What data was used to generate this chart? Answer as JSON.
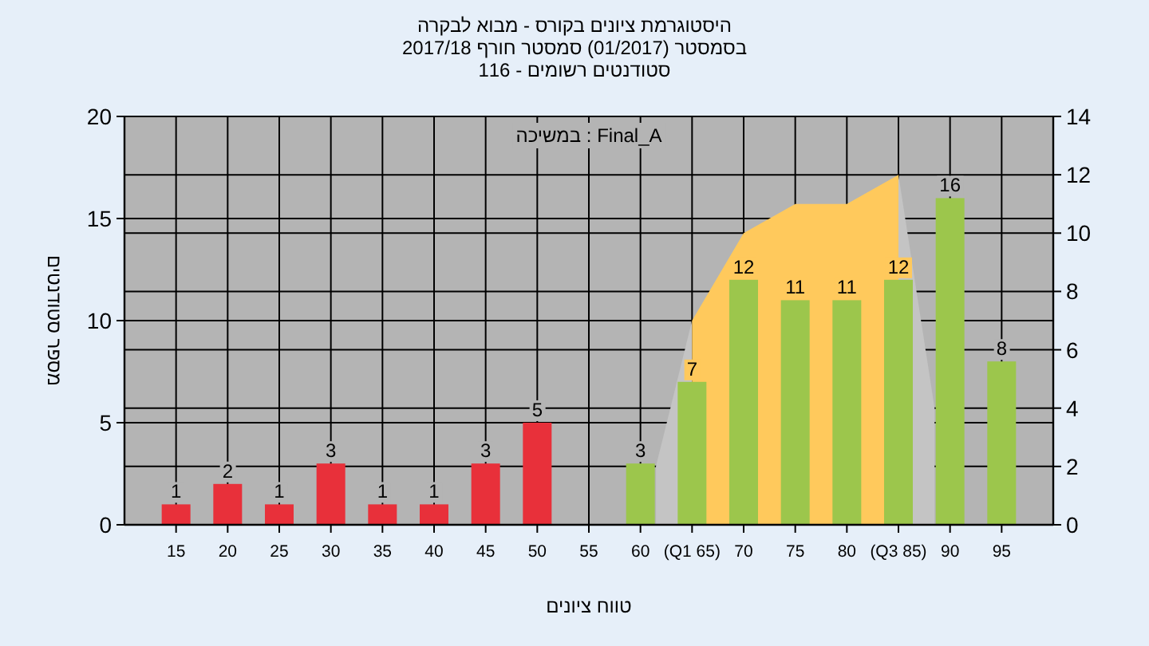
{
  "chart_data": {
    "type": "bar",
    "title": "היסטוגרמת ציונים בקורס - מבוא לבקרה",
    "subtitle": "בסמסטר  (01/2017)  סמסטר חורף 2017/18",
    "annotations": [
      "סטודנטים רשומים - 116",
      "במשיכה : Final_A"
    ],
    "xlabel": "טווח ציונים",
    "ylabel": "מספר סטודנטים",
    "xlim": [
      10,
      100
    ],
    "xticks": [
      15,
      20,
      25,
      30,
      35,
      40,
      45,
      50,
      55,
      60,
      {
        "value": 65,
        "label": "(Q1 65)"
      },
      70,
      75,
      80,
      {
        "value": 85,
        "label": "(Q3 85)"
      },
      90,
      95
    ],
    "ylim": [
      0,
      20
    ],
    "yticks": [
      0,
      5,
      10,
      15,
      20
    ],
    "y2lim": [
      0,
      14
    ],
    "y2ticks": [
      0,
      2,
      4,
      6,
      8,
      10,
      12,
      14
    ],
    "grid": true,
    "series": [
      {
        "type": "area",
        "axis": "y2",
        "color": "#c4c4c4",
        "x": [
          61.5,
          65
        ],
        "values": [
          2,
          7
        ]
      },
      {
        "type": "area",
        "axis": "y2",
        "color": "#c4c4c4",
        "x": [
          85,
          88.5
        ],
        "values": [
          12,
          4
        ]
      },
      {
        "type": "area",
        "axis": "y2",
        "color": "#ffc95c",
        "x": [
          65,
          70,
          75,
          80,
          85
        ],
        "values": [
          7,
          10,
          11,
          11,
          12
        ]
      },
      {
        "x": [
          15,
          20,
          25,
          30,
          35,
          40,
          45,
          50,
          55,
          60,
          65,
          70,
          75,
          80,
          85,
          90,
          95
        ],
        "values": [
          1,
          2,
          1,
          3,
          1,
          1,
          3,
          5,
          0,
          3,
          7,
          12,
          11,
          11,
          12,
          16,
          8
        ],
        "colors": [
          "#e8303a",
          "#e8303a",
          "#e8303a",
          "#e8303a",
          "#e8303a",
          "#e8303a",
          "#e8303a",
          "#e8303a",
          "#e8303a",
          "#9cc64c",
          "#9cc64c",
          "#9cc64c",
          "#9cc64c",
          "#9cc64c",
          "#9cc64c",
          "#9cc64c",
          "#9cc64c"
        ],
        "value_labels": [
          "1",
          "2",
          "1",
          "3",
          "1",
          "1",
          "3",
          "5",
          null,
          "3",
          "7",
          "12",
          "11",
          "11",
          "12",
          "16",
          "8"
        ]
      }
    ]
  }
}
